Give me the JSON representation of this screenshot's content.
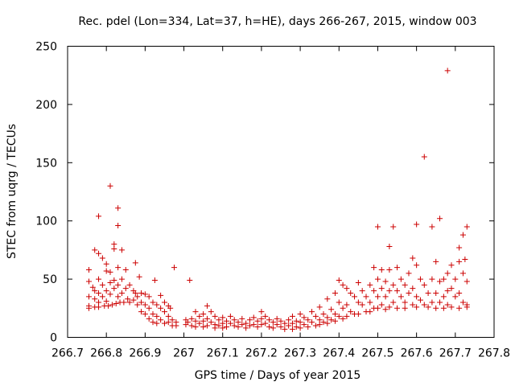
{
  "chart_data": {
    "type": "scatter",
    "title": "Rec. pdel (Lon=334, Lat=37, h=HE), days 266-267, 2015, window 003",
    "xlabel": "GPS time / Days of year 2015",
    "ylabel": "STEC from uqrg / TECUs",
    "xlim": [
      266.7,
      267.8
    ],
    "ylim": [
      0,
      250
    ],
    "xticks": [
      "266.7",
      "266.8",
      "266.9",
      "267",
      "267.1",
      "267.2",
      "267.3",
      "267.4",
      "267.5",
      "267.6",
      "267.7",
      "267.8"
    ],
    "yticks": [
      "0",
      "50",
      "100",
      "150",
      "200",
      "250"
    ],
    "grid": false,
    "legend": "none",
    "marker": "plus",
    "color": "#cc0000",
    "series": [
      {
        "points": [
          [
            266.755,
            58
          ],
          [
            266.755,
            48
          ],
          [
            266.755,
            35
          ],
          [
            266.755,
            27
          ],
          [
            266.755,
            25
          ],
          [
            266.765,
            43
          ],
          [
            266.77,
            75
          ],
          [
            266.77,
            40
          ],
          [
            266.77,
            33
          ],
          [
            266.77,
            26
          ],
          [
            266.78,
            104
          ],
          [
            266.78,
            72
          ],
          [
            266.78,
            50
          ],
          [
            266.78,
            38
          ],
          [
            266.78,
            30
          ],
          [
            266.78,
            26
          ],
          [
            266.79,
            68
          ],
          [
            266.79,
            45
          ],
          [
            266.79,
            35
          ],
          [
            266.795,
            27
          ],
          [
            266.8,
            63
          ],
          [
            266.8,
            57
          ],
          [
            266.8,
            40
          ],
          [
            266.8,
            31
          ],
          [
            266.805,
            27
          ],
          [
            266.81,
            130
          ],
          [
            266.81,
            56
          ],
          [
            266.81,
            47
          ],
          [
            266.81,
            37
          ],
          [
            266.815,
            28
          ],
          [
            266.82,
            80
          ],
          [
            266.82,
            76
          ],
          [
            266.82,
            49
          ],
          [
            266.82,
            42
          ],
          [
            266.825,
            29
          ],
          [
            266.83,
            111
          ],
          [
            266.83,
            96
          ],
          [
            266.83,
            60
          ],
          [
            266.83,
            45
          ],
          [
            266.83,
            35
          ],
          [
            266.835,
            30
          ],
          [
            266.84,
            75
          ],
          [
            266.84,
            50
          ],
          [
            266.84,
            38
          ],
          [
            266.845,
            30
          ],
          [
            266.85,
            58
          ],
          [
            266.85,
            42
          ],
          [
            266.855,
            33
          ],
          [
            266.86,
            45
          ],
          [
            266.86,
            30
          ],
          [
            266.87,
            40
          ],
          [
            266.87,
            32
          ],
          [
            266.875,
            64
          ],
          [
            266.875,
            38
          ],
          [
            266.88,
            35
          ],
          [
            266.88,
            28
          ],
          [
            266.885,
            52
          ],
          [
            266.89,
            38
          ],
          [
            266.89,
            30
          ],
          [
            266.89,
            22
          ],
          [
            266.9,
            37
          ],
          [
            266.9,
            28
          ],
          [
            266.9,
            20
          ],
          [
            266.91,
            35
          ],
          [
            266.91,
            25
          ],
          [
            266.91,
            16
          ],
          [
            266.92,
            30
          ],
          [
            266.92,
            20
          ],
          [
            266.92,
            13
          ],
          [
            266.925,
            49
          ],
          [
            266.93,
            28
          ],
          [
            266.93,
            18
          ],
          [
            266.93,
            12
          ],
          [
            266.94,
            36
          ],
          [
            266.94,
            25
          ],
          [
            266.94,
            15
          ],
          [
            266.95,
            30
          ],
          [
            266.95,
            22
          ],
          [
            266.95,
            12
          ],
          [
            266.96,
            27
          ],
          [
            266.96,
            18
          ],
          [
            266.96,
            13
          ],
          [
            266.965,
            25
          ],
          [
            266.97,
            15
          ],
          [
            266.97,
            10
          ],
          [
            266.975,
            60
          ],
          [
            266.98,
            13
          ],
          [
            266.98,
            10
          ],
          [
            267.005,
            15
          ],
          [
            267.005,
            11
          ],
          [
            267.01,
            13
          ],
          [
            267.015,
            49
          ],
          [
            267.02,
            16
          ],
          [
            267.02,
            10
          ],
          [
            267.03,
            22
          ],
          [
            267.03,
            14
          ],
          [
            267.03,
            9
          ],
          [
            267.04,
            18
          ],
          [
            267.04,
            12
          ],
          [
            267.05,
            20
          ],
          [
            267.05,
            14
          ],
          [
            267.05,
            9
          ],
          [
            267.06,
            27
          ],
          [
            267.06,
            16
          ],
          [
            267.06,
            10
          ],
          [
            267.07,
            22
          ],
          [
            267.07,
            13
          ],
          [
            267.08,
            18
          ],
          [
            267.08,
            11
          ],
          [
            267.08,
            8
          ],
          [
            267.09,
            15
          ],
          [
            267.09,
            10
          ],
          [
            267.1,
            17
          ],
          [
            267.1,
            12
          ],
          [
            267.1,
            8
          ],
          [
            267.11,
            14
          ],
          [
            267.11,
            9
          ],
          [
            267.12,
            18
          ],
          [
            267.12,
            12
          ],
          [
            267.13,
            15
          ],
          [
            267.13,
            10
          ],
          [
            267.14,
            13
          ],
          [
            267.14,
            9
          ],
          [
            267.15,
            16
          ],
          [
            267.15,
            11
          ],
          [
            267.16,
            12
          ],
          [
            267.16,
            8
          ],
          [
            267.17,
            15
          ],
          [
            267.17,
            10
          ],
          [
            267.18,
            17
          ],
          [
            267.18,
            11
          ],
          [
            267.19,
            14
          ],
          [
            267.19,
            9
          ],
          [
            267.2,
            22
          ],
          [
            267.2,
            16
          ],
          [
            267.2,
            11
          ],
          [
            267.21,
            18
          ],
          [
            267.21,
            12
          ],
          [
            267.22,
            15
          ],
          [
            267.22,
            9
          ],
          [
            267.23,
            13
          ],
          [
            267.23,
            8
          ],
          [
            267.24,
            16
          ],
          [
            267.24,
            11
          ],
          [
            267.25,
            14
          ],
          [
            267.25,
            9
          ],
          [
            267.26,
            12
          ],
          [
            267.26,
            7
          ],
          [
            267.27,
            15
          ],
          [
            267.27,
            10
          ],
          [
            267.28,
            18
          ],
          [
            267.28,
            12
          ],
          [
            267.28,
            7
          ],
          [
            267.29,
            14
          ],
          [
            267.29,
            9
          ],
          [
            267.3,
            20
          ],
          [
            267.3,
            13
          ],
          [
            267.3,
            8
          ],
          [
            267.31,
            17
          ],
          [
            267.31,
            11
          ],
          [
            267.32,
            15
          ],
          [
            267.32,
            9
          ],
          [
            267.33,
            22
          ],
          [
            267.33,
            13
          ],
          [
            267.34,
            18
          ],
          [
            267.34,
            10
          ],
          [
            267.35,
            26
          ],
          [
            267.35,
            15
          ],
          [
            267.35,
            11
          ],
          [
            267.36,
            20
          ],
          [
            267.36,
            13
          ],
          [
            267.37,
            33
          ],
          [
            267.37,
            17
          ],
          [
            267.37,
            12
          ],
          [
            267.38,
            24
          ],
          [
            267.38,
            15
          ],
          [
            267.39,
            38
          ],
          [
            267.39,
            20
          ],
          [
            267.39,
            14
          ],
          [
            267.4,
            49
          ],
          [
            267.4,
            30
          ],
          [
            267.4,
            18
          ],
          [
            267.41,
            45
          ],
          [
            267.41,
            25
          ],
          [
            267.41,
            16
          ],
          [
            267.42,
            42
          ],
          [
            267.42,
            28
          ],
          [
            267.42,
            18
          ],
          [
            267.43,
            38
          ],
          [
            267.43,
            22
          ],
          [
            267.44,
            35
          ],
          [
            267.44,
            20
          ],
          [
            267.45,
            47
          ],
          [
            267.45,
            30
          ],
          [
            267.45,
            20
          ],
          [
            267.46,
            40
          ],
          [
            267.46,
            28
          ],
          [
            267.47,
            35
          ],
          [
            267.47,
            22
          ],
          [
            267.48,
            45
          ],
          [
            267.48,
            30
          ],
          [
            267.48,
            22
          ],
          [
            267.49,
            60
          ],
          [
            267.49,
            40
          ],
          [
            267.49,
            25
          ],
          [
            267.5,
            95
          ],
          [
            267.5,
            50
          ],
          [
            267.5,
            35
          ],
          [
            267.5,
            25
          ],
          [
            267.51,
            58
          ],
          [
            267.51,
            42
          ],
          [
            267.51,
            28
          ],
          [
            267.52,
            48
          ],
          [
            267.52,
            35
          ],
          [
            267.52,
            24
          ],
          [
            267.53,
            78
          ],
          [
            267.53,
            58
          ],
          [
            267.53,
            40
          ],
          [
            267.53,
            26
          ],
          [
            267.54,
            95
          ],
          [
            267.54,
            45
          ],
          [
            267.54,
            30
          ],
          [
            267.55,
            60
          ],
          [
            267.55,
            40
          ],
          [
            267.55,
            25
          ],
          [
            267.56,
            50
          ],
          [
            267.56,
            35
          ],
          [
            267.57,
            45
          ],
          [
            267.57,
            30
          ],
          [
            267.57,
            25
          ],
          [
            267.58,
            55
          ],
          [
            267.58,
            38
          ],
          [
            267.59,
            68
          ],
          [
            267.59,
            42
          ],
          [
            267.59,
            28
          ],
          [
            267.6,
            97
          ],
          [
            267.6,
            62
          ],
          [
            267.6,
            35
          ],
          [
            267.6,
            26
          ],
          [
            267.61,
            50
          ],
          [
            267.61,
            32
          ],
          [
            267.62,
            155
          ],
          [
            267.62,
            45
          ],
          [
            267.62,
            28
          ],
          [
            267.63,
            38
          ],
          [
            267.63,
            26
          ],
          [
            267.64,
            95
          ],
          [
            267.64,
            50
          ],
          [
            267.64,
            30
          ],
          [
            267.65,
            65
          ],
          [
            267.65,
            38
          ],
          [
            267.65,
            25
          ],
          [
            267.66,
            102
          ],
          [
            267.66,
            48
          ],
          [
            267.66,
            30
          ],
          [
            267.67,
            50
          ],
          [
            267.67,
            35
          ],
          [
            267.67,
            25
          ],
          [
            267.68,
            229
          ],
          [
            267.68,
            55
          ],
          [
            267.68,
            40
          ],
          [
            267.68,
            28
          ],
          [
            267.69,
            62
          ],
          [
            267.69,
            42
          ],
          [
            267.69,
            26
          ],
          [
            267.7,
            50
          ],
          [
            267.7,
            35
          ],
          [
            267.71,
            77
          ],
          [
            267.71,
            65
          ],
          [
            267.71,
            38
          ],
          [
            267.71,
            25
          ],
          [
            267.72,
            88
          ],
          [
            267.72,
            55
          ],
          [
            267.72,
            30
          ],
          [
            267.725,
            67
          ],
          [
            267.73,
            95
          ],
          [
            267.73,
            48
          ],
          [
            267.73,
            28
          ],
          [
            267.73,
            26
          ]
        ]
      }
    ]
  }
}
